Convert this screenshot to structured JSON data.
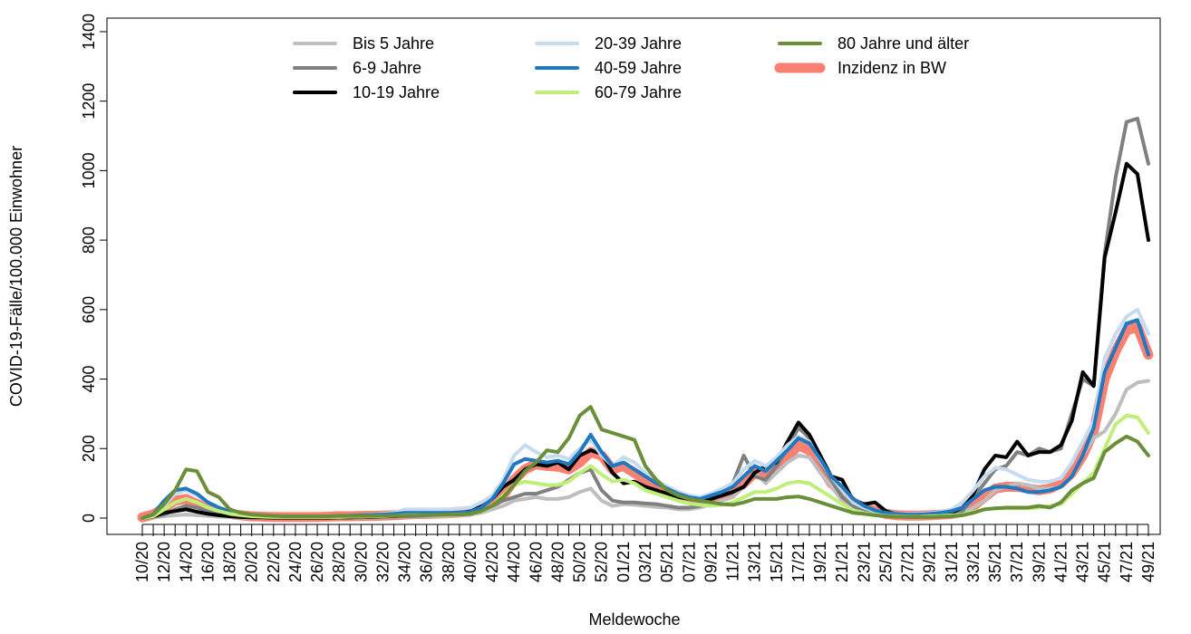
{
  "chart_data": {
    "type": "line",
    "x_label": "Meldewoche",
    "y_label": "COVID-19-Fälle/100.000 Einwohner",
    "legend": "top-center",
    "ylim": [
      -47,
      1439
    ],
    "yticks": [
      0,
      200,
      400,
      600,
      800,
      1000,
      1200,
      1400
    ],
    "categories": [
      "10/20",
      null,
      "12/20",
      null,
      "14/20",
      null,
      "16/20",
      null,
      "18/20",
      null,
      "20/20",
      null,
      "22/20",
      null,
      "24/20",
      null,
      "26/20",
      null,
      "28/20",
      null,
      "30/20",
      null,
      "32/20",
      null,
      "34/20",
      null,
      "36/20",
      null,
      "38/20",
      null,
      "40/20",
      null,
      "42/20",
      null,
      "44/20",
      null,
      "46/20",
      null,
      "48/20",
      null,
      "50/20",
      null,
      "52/20",
      null,
      "01/21",
      null,
      "03/21",
      null,
      "05/21",
      null,
      "07/21",
      null,
      "09/21",
      null,
      "11/21",
      null,
      "13/21",
      null,
      "15/21",
      null,
      "17/21",
      null,
      "19/21",
      null,
      "21/21",
      null,
      "23/21",
      null,
      "25/21",
      null,
      "27/21",
      null,
      "29/21",
      null,
      "31/21",
      null,
      "33/21",
      null,
      "35/21",
      null,
      "37/21",
      null,
      "39/21",
      null,
      "41/21",
      null,
      "43/21",
      null,
      "45/21",
      null,
      "47/21",
      null,
      "49/21"
    ],
    "series": [
      {
        "name": "Bis 5 Jahre",
        "color": "#bebebe",
        "line_width": 4,
        "values": [
          0,
          2,
          5,
          8,
          10,
          8,
          6,
          4,
          3,
          2,
          2,
          2,
          1,
          1,
          1,
          1,
          1,
          1,
          2,
          2,
          2,
          2,
          3,
          3,
          4,
          5,
          5,
          6,
          6,
          8,
          10,
          15,
          25,
          35,
          50,
          55,
          60,
          55,
          55,
          60,
          75,
          85,
          50,
          35,
          40,
          38,
          35,
          32,
          30,
          25,
          25,
          30,
          40,
          50,
          60,
          90,
          130,
          100,
          130,
          160,
          180,
          175,
          130,
          90,
          50,
          30,
          20,
          12,
          8,
          6,
          5,
          5,
          6,
          8,
          10,
          15,
          30,
          50,
          80,
          90,
          100,
          95,
          85,
          85,
          90,
          120,
          180,
          230,
          250,
          300,
          370,
          390,
          395
        ]
      },
      {
        "name": "6-9 Jahre",
        "color": "#808080",
        "line_width": 4,
        "values": [
          0,
          3,
          10,
          25,
          35,
          30,
          20,
          12,
          8,
          5,
          3,
          2,
          2,
          1,
          1,
          1,
          1,
          1,
          1,
          2,
          2,
          3,
          3,
          4,
          5,
          6,
          7,
          8,
          10,
          12,
          15,
          22,
          35,
          50,
          60,
          70,
          70,
          80,
          90,
          110,
          130,
          140,
          80,
          50,
          45,
          45,
          42,
          40,
          35,
          30,
          30,
          35,
          50,
          70,
          100,
          180,
          120,
          110,
          150,
          200,
          260,
          230,
          160,
          110,
          60,
          35,
          20,
          12,
          8,
          6,
          5,
          5,
          6,
          8,
          10,
          20,
          60,
          100,
          140,
          150,
          190,
          180,
          200,
          190,
          200,
          300,
          400,
          380,
          760,
          980,
          1140,
          1150,
          1020
        ]
      },
      {
        "name": "10-19 Jahre",
        "color": "#000000",
        "line_width": 4,
        "values": [
          0,
          5,
          15,
          20,
          25,
          18,
          12,
          8,
          5,
          3,
          2,
          2,
          1,
          1,
          1,
          1,
          1,
          1,
          2,
          2,
          3,
          4,
          5,
          5,
          8,
          8,
          8,
          10,
          12,
          14,
          20,
          35,
          55,
          90,
          110,
          140,
          155,
          150,
          160,
          140,
          180,
          195,
          185,
          130,
          100,
          105,
          90,
          80,
          70,
          60,
          55,
          50,
          55,
          65,
          75,
          90,
          130,
          150,
          160,
          220,
          275,
          240,
          180,
          120,
          110,
          50,
          40,
          45,
          20,
          10,
          8,
          8,
          10,
          12,
          15,
          30,
          70,
          140,
          180,
          175,
          220,
          180,
          190,
          190,
          210,
          280,
          420,
          380,
          750,
          880,
          1020,
          990,
          800
        ]
      },
      {
        "name": "20-39 Jahre",
        "color": "#c6dbef",
        "line_width": 4,
        "values": [
          0,
          8,
          35,
          70,
          80,
          65,
          45,
          30,
          18,
          12,
          8,
          6,
          5,
          5,
          5,
          5,
          5,
          5,
          6,
          7,
          8,
          10,
          12,
          15,
          25,
          25,
          25,
          25,
          25,
          28,
          30,
          45,
          65,
          110,
          180,
          210,
          190,
          175,
          180,
          170,
          200,
          225,
          180,
          150,
          175,
          160,
          130,
          110,
          90,
          75,
          65,
          60,
          70,
          85,
          100,
          140,
          165,
          150,
          175,
          210,
          235,
          220,
          165,
          120,
          80,
          45,
          30,
          20,
          15,
          12,
          12,
          12,
          14,
          18,
          25,
          45,
          80,
          120,
          145,
          140,
          125,
          110,
          105,
          105,
          115,
          160,
          220,
          280,
          460,
          530,
          580,
          600,
          530
        ]
      },
      {
        "name": "40-59 Jahre",
        "color": "#1f78c0",
        "line_width": 4,
        "values": [
          0,
          10,
          50,
          80,
          85,
          70,
          45,
          30,
          18,
          12,
          8,
          6,
          5,
          5,
          5,
          5,
          5,
          5,
          6,
          7,
          8,
          9,
          10,
          12,
          15,
          15,
          15,
          15,
          15,
          16,
          18,
          30,
          55,
          100,
          155,
          170,
          165,
          160,
          165,
          155,
          190,
          240,
          190,
          150,
          160,
          140,
          120,
          100,
          85,
          70,
          60,
          55,
          65,
          75,
          90,
          120,
          150,
          135,
          165,
          195,
          230,
          215,
          170,
          120,
          90,
          55,
          35,
          22,
          15,
          12,
          10,
          10,
          12,
          15,
          20,
          30,
          55,
          80,
          90,
          90,
          85,
          75,
          75,
          80,
          90,
          120,
          180,
          260,
          420,
          490,
          560,
          570,
          470
        ]
      },
      {
        "name": "60-79 Jahre",
        "color": "#bfef78",
        "line_width": 4,
        "values": [
          0,
          5,
          25,
          45,
          55,
          45,
          30,
          20,
          12,
          8,
          5,
          4,
          3,
          3,
          3,
          3,
          3,
          3,
          3,
          4,
          4,
          5,
          5,
          6,
          8,
          8,
          8,
          8,
          9,
          10,
          12,
          18,
          35,
          65,
          95,
          105,
          100,
          95,
          95,
          105,
          130,
          150,
          125,
          105,
          110,
          100,
          80,
          70,
          60,
          50,
          42,
          38,
          35,
          38,
          45,
          60,
          75,
          75,
          85,
          100,
          105,
          100,
          80,
          60,
          40,
          22,
          15,
          10,
          6,
          5,
          4,
          4,
          5,
          6,
          8,
          10,
          18,
          25,
          28,
          28,
          28,
          28,
          30,
          35,
          40,
          70,
          100,
          130,
          200,
          270,
          295,
          290,
          245
        ]
      },
      {
        "name": "80 Jahre und älter",
        "color": "#6b8e3a",
        "line_width": 4,
        "values": [
          0,
          10,
          40,
          80,
          140,
          135,
          75,
          60,
          25,
          15,
          10,
          8,
          6,
          5,
          5,
          5,
          5,
          5,
          6,
          6,
          6,
          6,
          6,
          6,
          7,
          7,
          8,
          9,
          10,
          10,
          12,
          20,
          35,
          60,
          95,
          135,
          160,
          195,
          190,
          230,
          295,
          320,
          255,
          245,
          235,
          225,
          150,
          110,
          80,
          65,
          55,
          50,
          45,
          40,
          38,
          45,
          55,
          55,
          55,
          60,
          62,
          55,
          45,
          35,
          25,
          15,
          12,
          8,
          5,
          4,
          3,
          3,
          3,
          4,
          5,
          8,
          15,
          25,
          28,
          30,
          30,
          30,
          35,
          30,
          45,
          80,
          100,
          115,
          190,
          215,
          235,
          220,
          180
        ]
      },
      {
        "name": "Inzidenz in BW",
        "color": "#fa8072",
        "line_width": 11,
        "values": [
          2,
          10,
          30,
          50,
          55,
          40,
          30,
          20,
          12,
          8,
          5,
          4,
          3,
          3,
          3,
          3,
          3,
          4,
          5,
          5,
          6,
          6,
          7,
          8,
          10,
          12,
          12,
          13,
          14,
          16,
          18,
          28,
          40,
          65,
          110,
          140,
          155,
          150,
          148,
          140,
          160,
          190,
          180,
          140,
          150,
          130,
          110,
          95,
          80,
          65,
          55,
          50,
          50,
          60,
          75,
          100,
          130,
          125,
          145,
          175,
          210,
          195,
          150,
          100,
          75,
          45,
          30,
          20,
          12,
          8,
          7,
          7,
          8,
          10,
          12,
          18,
          35,
          60,
          85,
          90,
          90,
          85,
          80,
          85,
          100,
          130,
          180,
          250,
          400,
          480,
          540,
          550,
          470
        ]
      }
    ]
  }
}
